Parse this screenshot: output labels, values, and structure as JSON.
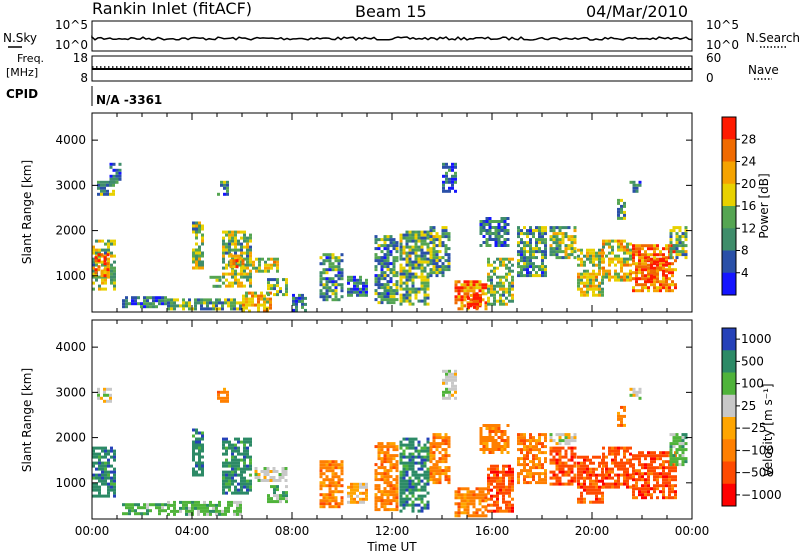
{
  "header": {
    "title": "Rankin Inlet (fitACF)",
    "beam": "Beam 15",
    "date": "04/Mar/2010"
  },
  "strip": {
    "nsky_label": "N.Sky",
    "nsearch_label": "N.Search",
    "freq_label": "Freq.",
    "freq_unit": "[MHz]",
    "nave_label": "Nave",
    "cpid_label": "CPID",
    "cpid_value": "N/A -3361",
    "left_ticks_top": [
      "10^5",
      "10^0"
    ],
    "right_ticks_top": [
      "10^5",
      "10^0"
    ],
    "left_ticks_freq": [
      "18",
      "8"
    ],
    "right_ticks_nave": [
      "60",
      "0"
    ]
  },
  "colors": {
    "power_scale": [
      "#1515ff",
      "#2a50a8",
      "#3f8d6b",
      "#55a552",
      "#e8d100",
      "#f5a300",
      "#f06a00",
      "#ff1a00"
    ],
    "velocity_scale": [
      "#2541b8",
      "#2c8a66",
      "#4fb33a",
      "#c8c8c8",
      "#ffa500",
      "#ff7f00",
      "#ff4a00",
      "#ff0000"
    ]
  },
  "chart_data": [
    {
      "type": "heatmap",
      "name": "power",
      "ylabel": "Slant Range [km]",
      "yticks": [
        "1000",
        "2000",
        "3000",
        "4000"
      ],
      "ylim": [
        200,
        4600
      ],
      "xlim": [
        0,
        24
      ],
      "colorbar_label": "Power [dB]",
      "colorbar_ticks": [
        "4",
        "8",
        "12",
        "16",
        "20",
        "24",
        "28"
      ],
      "color_range": [
        0,
        30
      ],
      "regions": [
        {
          "t": [
            0.0,
            0.9
          ],
          "r": [
            700,
            1800
          ],
          "v": 14
        },
        {
          "t": [
            0.1,
            0.7
          ],
          "r": [
            1000,
            1500
          ],
          "v": 24
        },
        {
          "t": [
            0.2,
            0.9
          ],
          "r": [
            2800,
            3100
          ],
          "v": 10
        },
        {
          "t": [
            0.7,
            1.1
          ],
          "r": [
            3100,
            3500
          ],
          "v": 6
        },
        {
          "t": [
            1.2,
            3.0
          ],
          "r": [
            300,
            550
          ],
          "v": 8
        },
        {
          "t": [
            3.0,
            6.0
          ],
          "r": [
            300,
            500
          ],
          "v": 12
        },
        {
          "t": [
            4.0,
            4.4
          ],
          "r": [
            1200,
            2200
          ],
          "v": 14
        },
        {
          "t": [
            4.7,
            5.1
          ],
          "r": [
            800,
            1000
          ],
          "v": 10
        },
        {
          "t": [
            5.2,
            6.4
          ],
          "r": [
            800,
            2000
          ],
          "v": 14
        },
        {
          "t": [
            5.5,
            6.0
          ],
          "r": [
            1200,
            1500
          ],
          "v": 24
        },
        {
          "t": [
            5.0,
            5.4
          ],
          "r": [
            2800,
            3100
          ],
          "v": 10
        },
        {
          "t": [
            6.0,
            7.2
          ],
          "r": [
            250,
            650
          ],
          "v": 20
        },
        {
          "t": [
            6.4,
            7.4
          ],
          "r": [
            1100,
            1400
          ],
          "v": 16
        },
        {
          "t": [
            7.0,
            7.8
          ],
          "r": [
            600,
            950
          ],
          "v": 12
        },
        {
          "t": [
            8.0,
            8.5
          ],
          "r": [
            250,
            600
          ],
          "v": 6
        },
        {
          "t": [
            9.1,
            10.0
          ],
          "r": [
            500,
            1500
          ],
          "v": 10
        },
        {
          "t": [
            10.2,
            11.0
          ],
          "r": [
            600,
            1000
          ],
          "v": 8
        },
        {
          "t": [
            11.3,
            12.2
          ],
          "r": [
            400,
            1900
          ],
          "v": 10
        },
        {
          "t": [
            12.3,
            13.4
          ],
          "r": [
            400,
            2000
          ],
          "v": 12
        },
        {
          "t": [
            13.5,
            14.3
          ],
          "r": [
            1000,
            2100
          ],
          "v": 12
        },
        {
          "t": [
            14.0,
            14.5
          ],
          "r": [
            2900,
            3500
          ],
          "v": 6
        },
        {
          "t": [
            14.5,
            15.8
          ],
          "r": [
            250,
            900
          ],
          "v": 24
        },
        {
          "t": [
            15.0,
            15.6
          ],
          "r": [
            300,
            600
          ],
          "v": 28
        },
        {
          "t": [
            15.8,
            16.8
          ],
          "r": [
            400,
            1400
          ],
          "v": 14
        },
        {
          "t": [
            15.5,
            16.6
          ],
          "r": [
            1700,
            2300
          ],
          "v": 8
        },
        {
          "t": [
            17.0,
            18.2
          ],
          "r": [
            1000,
            2100
          ],
          "v": 10
        },
        {
          "t": [
            18.3,
            19.3
          ],
          "r": [
            1400,
            2100
          ],
          "v": 14
        },
        {
          "t": [
            19.4,
            20.4
          ],
          "r": [
            600,
            1600
          ],
          "v": 16
        },
        {
          "t": [
            20.4,
            21.5
          ],
          "r": [
            900,
            1800
          ],
          "v": 18
        },
        {
          "t": [
            21.0,
            21.3
          ],
          "r": [
            2300,
            2700
          ],
          "v": 12
        },
        {
          "t": [
            21.5,
            21.9
          ],
          "r": [
            2900,
            3100
          ],
          "v": 8
        },
        {
          "t": [
            21.6,
            23.4
          ],
          "r": [
            700,
            1700
          ],
          "v": 24
        },
        {
          "t": [
            22.2,
            23.0
          ],
          "r": [
            900,
            1400
          ],
          "v": 28
        },
        {
          "t": [
            23.1,
            23.8
          ],
          "r": [
            1400,
            2100
          ],
          "v": 12
        }
      ]
    },
    {
      "type": "heatmap",
      "name": "velocity",
      "ylabel": "Slant Range [km]",
      "yticks": [
        "1000",
        "2000",
        "3000",
        "4000"
      ],
      "ylim": [
        200,
        4600
      ],
      "xlim": [
        0,
        24
      ],
      "colorbar_label": "Velocity [m s⁻¹]",
      "colorbar_ticks": [
        "1000",
        "500",
        "100",
        "25",
        "−25",
        "−100",
        "−500",
        "−1000"
      ],
      "regions": [
        {
          "t": [
            0.0,
            0.9
          ],
          "r": [
            700,
            1800
          ],
          "c": 1
        },
        {
          "t": [
            0.2,
            0.8
          ],
          "r": [
            2800,
            3100
          ],
          "c": 3
        },
        {
          "t": [
            1.2,
            3.0
          ],
          "r": [
            300,
            550
          ],
          "c": 2
        },
        {
          "t": [
            3.0,
            6.0
          ],
          "r": [
            300,
            600
          ],
          "c": 2
        },
        {
          "t": [
            4.0,
            4.4
          ],
          "r": [
            1200,
            2200
          ],
          "c": 1
        },
        {
          "t": [
            5.2,
            6.4
          ],
          "r": [
            800,
            2000
          ],
          "c": 1
        },
        {
          "t": [
            5.0,
            5.4
          ],
          "r": [
            2800,
            3100
          ],
          "c": 5
        },
        {
          "t": [
            6.5,
            7.8
          ],
          "r": [
            1050,
            1350
          ],
          "c": 3
        },
        {
          "t": [
            7.0,
            7.8
          ],
          "r": [
            600,
            950
          ],
          "c": 2
        },
        {
          "t": [
            9.1,
            10.0
          ],
          "r": [
            500,
            1500
          ],
          "c": 5
        },
        {
          "t": [
            10.2,
            11.0
          ],
          "r": [
            600,
            1000
          ],
          "c": 4
        },
        {
          "t": [
            11.3,
            12.2
          ],
          "r": [
            400,
            1900
          ],
          "c": 5
        },
        {
          "t": [
            12.3,
            13.4
          ],
          "r": [
            400,
            2000
          ],
          "c": 1
        },
        {
          "t": [
            13.5,
            14.3
          ],
          "r": [
            1000,
            2100
          ],
          "c": 5
        },
        {
          "t": [
            14.0,
            14.5
          ],
          "r": [
            2900,
            3500
          ],
          "c": 3
        },
        {
          "t": [
            14.5,
            15.8
          ],
          "r": [
            250,
            900
          ],
          "c": 5
        },
        {
          "t": [
            15.8,
            16.8
          ],
          "r": [
            400,
            1400
          ],
          "c": 6
        },
        {
          "t": [
            15.5,
            16.6
          ],
          "r": [
            1700,
            2300
          ],
          "c": 5
        },
        {
          "t": [
            17.0,
            18.2
          ],
          "r": [
            1000,
            2100
          ],
          "c": 5
        },
        {
          "t": [
            18.3,
            19.3
          ],
          "r": [
            1900,
            2100
          ],
          "c": 3
        },
        {
          "t": [
            18.3,
            19.3
          ],
          "r": [
            1000,
            1800
          ],
          "c": 6
        },
        {
          "t": [
            19.4,
            20.4
          ],
          "r": [
            600,
            1600
          ],
          "c": 6
        },
        {
          "t": [
            20.4,
            21.5
          ],
          "r": [
            900,
            1800
          ],
          "c": 6
        },
        {
          "t": [
            21.0,
            21.3
          ],
          "r": [
            2300,
            2700
          ],
          "c": 5
        },
        {
          "t": [
            21.5,
            21.9
          ],
          "r": [
            2900,
            3100
          ],
          "c": 3
        },
        {
          "t": [
            21.6,
            23.4
          ],
          "r": [
            700,
            1700
          ],
          "c": 6
        },
        {
          "t": [
            23.1,
            23.8
          ],
          "r": [
            1400,
            2100
          ],
          "c": 2
        }
      ]
    }
  ],
  "xaxis": {
    "ticks": [
      "00:00",
      "04:00",
      "08:00",
      "12:00",
      "16:00",
      "20:00",
      "00:00"
    ],
    "label": "Time UT"
  }
}
